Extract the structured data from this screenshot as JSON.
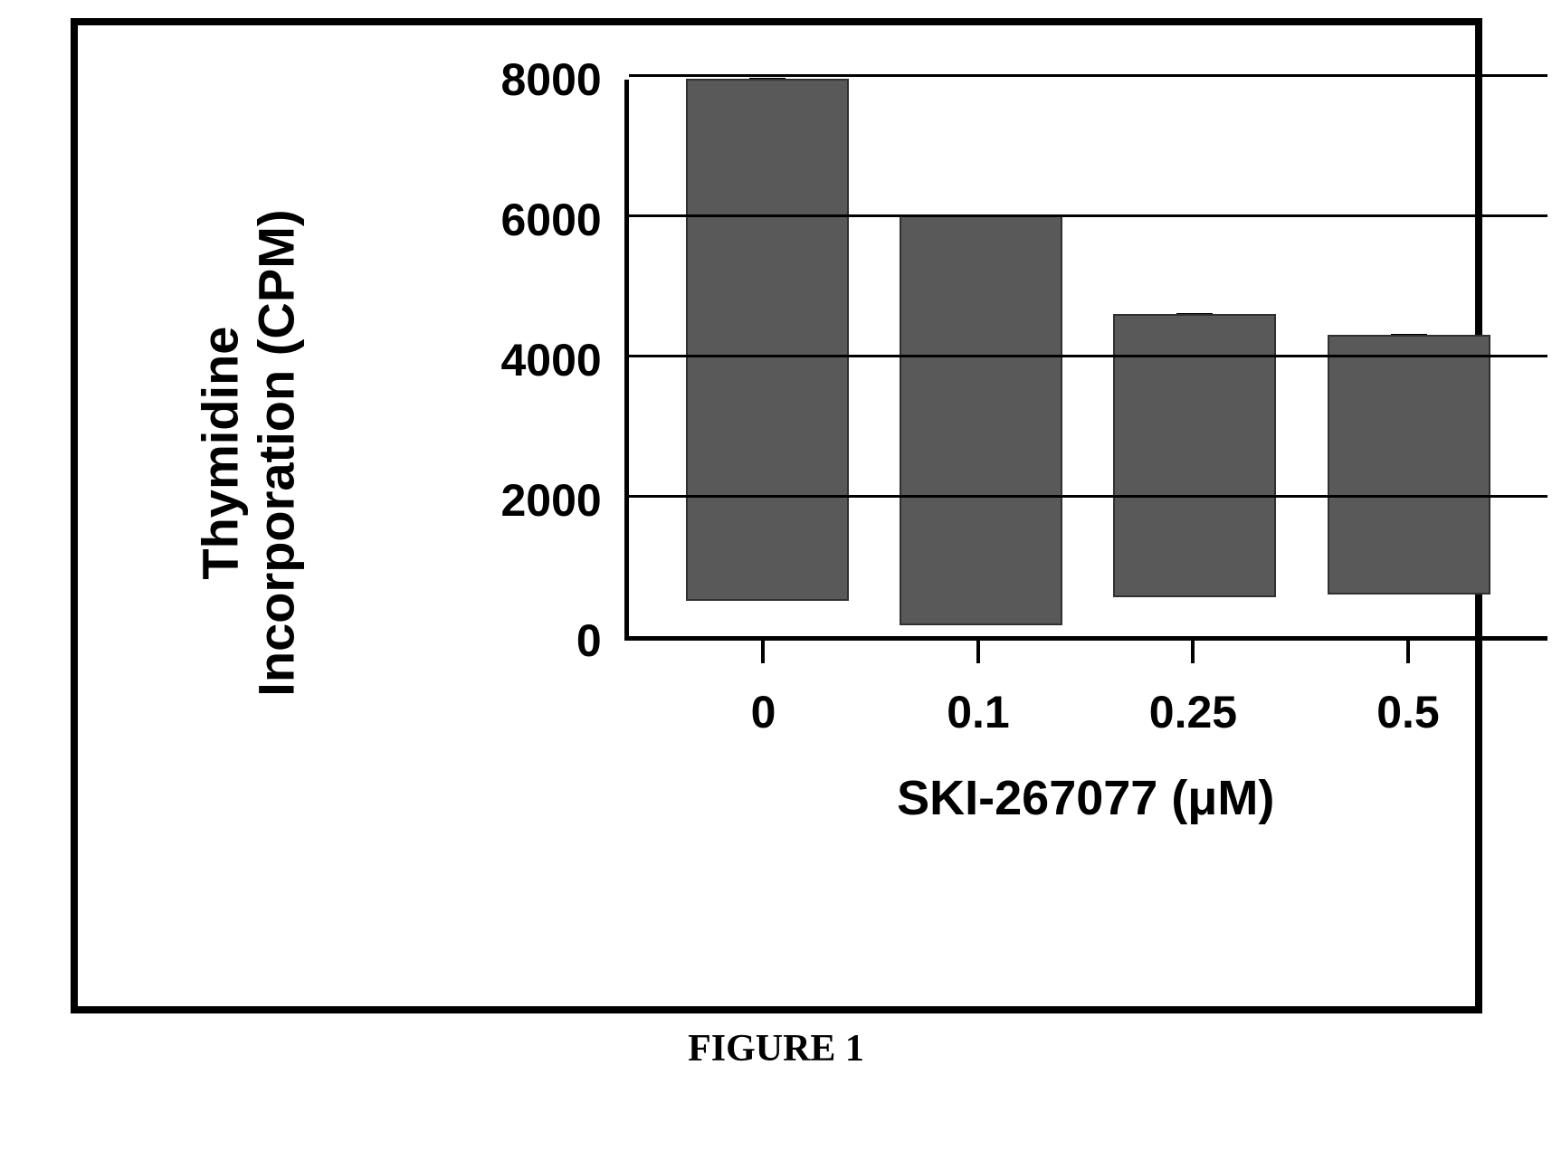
{
  "chart": {
    "type": "bar",
    "ylabel_line1": "Thymidine",
    "ylabel_line2": "Incorporation (CPM)",
    "xlabel": "SKI-267077 (μM)",
    "ylim": [
      0,
      8000
    ],
    "ytick_step": 2000,
    "yticks": [
      "8000",
      "6000",
      "4000",
      "2000",
      "0"
    ],
    "categories": [
      "0",
      "0.1",
      "0.25",
      "0.5"
    ],
    "values": [
      7450,
      5850,
      4050,
      3700
    ],
    "error_values": [
      500,
      150,
      550,
      600
    ],
    "bar_color": "#595959",
    "grid_color": "#000000",
    "axis_color": "#000000",
    "background_color": "#ffffff",
    "bar_width": 0.75,
    "axis_font_size": 50,
    "label_font_size": 56,
    "xaxis_title_font_size": 54,
    "font_weight": "bold"
  },
  "caption": "FIGURE 1"
}
